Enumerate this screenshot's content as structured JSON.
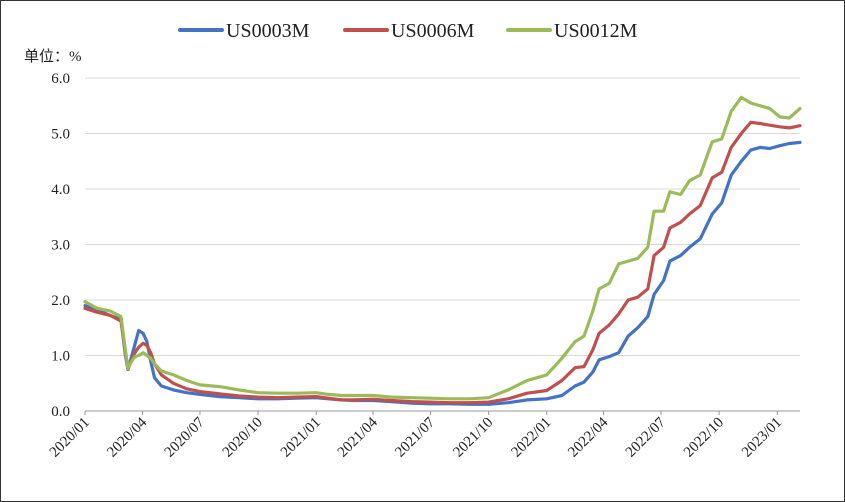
{
  "chart_data": {
    "type": "line",
    "unit_label": "单位：%",
    "ylim": [
      0,
      6
    ],
    "yticks": [
      "0.0",
      "1.0",
      "2.0",
      "3.0",
      "4.0",
      "5.0",
      "6.0"
    ],
    "xlim": [
      "2020-01-01",
      "2023-02-06"
    ],
    "xticks": [
      {
        "date": "2020-01-01",
        "label": "2020/01"
      },
      {
        "date": "2020-04-01",
        "label": "2020/04"
      },
      {
        "date": "2020-07-01",
        "label": "2020/07"
      },
      {
        "date": "2020-10-01",
        "label": "2020/10"
      },
      {
        "date": "2021-01-01",
        "label": "2021/01"
      },
      {
        "date": "2021-04-01",
        "label": "2021/04"
      },
      {
        "date": "2021-07-01",
        "label": "2021/07"
      },
      {
        "date": "2021-10-01",
        "label": "2021/10"
      },
      {
        "date": "2022-01-01",
        "label": "2022/01"
      },
      {
        "date": "2022-04-01",
        "label": "2022/04"
      },
      {
        "date": "2022-07-01",
        "label": "2022/07"
      },
      {
        "date": "2022-10-01",
        "label": "2022/10"
      },
      {
        "date": "2023-01-01",
        "label": "2023/01"
      }
    ],
    "grid": "horizontal",
    "legend_position": "top-center",
    "series": [
      {
        "name": "US0003M",
        "color": "#4472C4",
        "points": [
          [
            "2020-01-01",
            1.9
          ],
          [
            "2020-01-20",
            1.82
          ],
          [
            "2020-02-10",
            1.72
          ],
          [
            "2020-02-27",
            1.65
          ],
          [
            "2020-03-05",
            1.0
          ],
          [
            "2020-03-09",
            0.75
          ],
          [
            "2020-03-14",
            0.95
          ],
          [
            "2020-03-20",
            1.2
          ],
          [
            "2020-03-26",
            1.45
          ],
          [
            "2020-04-02",
            1.4
          ],
          [
            "2020-04-08",
            1.25
          ],
          [
            "2020-04-14",
            0.9
          ],
          [
            "2020-04-20",
            0.6
          ],
          [
            "2020-05-01",
            0.45
          ],
          [
            "2020-05-20",
            0.38
          ],
          [
            "2020-06-10",
            0.33
          ],
          [
            "2020-07-01",
            0.3
          ],
          [
            "2020-08-01",
            0.26
          ],
          [
            "2020-09-01",
            0.24
          ],
          [
            "2020-10-01",
            0.22
          ],
          [
            "2020-11-01",
            0.22
          ],
          [
            "2020-12-01",
            0.23
          ],
          [
            "2021-01-01",
            0.24
          ],
          [
            "2021-01-20",
            0.22
          ],
          [
            "2021-02-10",
            0.2
          ],
          [
            "2021-03-01",
            0.19
          ],
          [
            "2021-04-01",
            0.19
          ],
          [
            "2021-05-01",
            0.17
          ],
          [
            "2021-06-01",
            0.14
          ],
          [
            "2021-07-01",
            0.13
          ],
          [
            "2021-08-01",
            0.13
          ],
          [
            "2021-09-01",
            0.12
          ],
          [
            "2021-10-01",
            0.12
          ],
          [
            "2021-11-01",
            0.15
          ],
          [
            "2021-12-01",
            0.2
          ],
          [
            "2022-01-01",
            0.22
          ],
          [
            "2022-01-25",
            0.28
          ],
          [
            "2022-02-15",
            0.45
          ],
          [
            "2022-03-01",
            0.52
          ],
          [
            "2022-03-15",
            0.7
          ],
          [
            "2022-03-25",
            0.92
          ],
          [
            "2022-04-10",
            0.98
          ],
          [
            "2022-04-25",
            1.05
          ],
          [
            "2022-05-10",
            1.35
          ],
          [
            "2022-05-25",
            1.5
          ],
          [
            "2022-06-10",
            1.7
          ],
          [
            "2022-06-20",
            2.1
          ],
          [
            "2022-07-05",
            2.35
          ],
          [
            "2022-07-15",
            2.7
          ],
          [
            "2022-08-01",
            2.8
          ],
          [
            "2022-08-15",
            2.95
          ],
          [
            "2022-09-01",
            3.1
          ],
          [
            "2022-09-20",
            3.55
          ],
          [
            "2022-10-05",
            3.75
          ],
          [
            "2022-10-20",
            4.25
          ],
          [
            "2022-11-05",
            4.5
          ],
          [
            "2022-11-20",
            4.7
          ],
          [
            "2022-12-05",
            4.75
          ],
          [
            "2022-12-20",
            4.73
          ],
          [
            "2023-01-05",
            4.78
          ],
          [
            "2023-01-20",
            4.82
          ],
          [
            "2023-02-06",
            4.84
          ]
        ]
      },
      {
        "name": "US0006M",
        "color": "#C0504D",
        "points": [
          [
            "2020-01-01",
            1.85
          ],
          [
            "2020-01-20",
            1.78
          ],
          [
            "2020-02-10",
            1.72
          ],
          [
            "2020-02-27",
            1.62
          ],
          [
            "2020-03-05",
            1.05
          ],
          [
            "2020-03-09",
            0.75
          ],
          [
            "2020-03-14",
            0.9
          ],
          [
            "2020-03-20",
            1.05
          ],
          [
            "2020-03-26",
            1.15
          ],
          [
            "2020-04-02",
            1.22
          ],
          [
            "2020-04-08",
            1.18
          ],
          [
            "2020-04-14",
            1.05
          ],
          [
            "2020-04-20",
            0.85
          ],
          [
            "2020-05-01",
            0.65
          ],
          [
            "2020-05-20",
            0.5
          ],
          [
            "2020-06-10",
            0.4
          ],
          [
            "2020-07-01",
            0.35
          ],
          [
            "2020-08-01",
            0.31
          ],
          [
            "2020-09-01",
            0.27
          ],
          [
            "2020-10-01",
            0.25
          ],
          [
            "2020-11-01",
            0.24
          ],
          [
            "2020-12-01",
            0.25
          ],
          [
            "2021-01-01",
            0.26
          ],
          [
            "2021-01-20",
            0.23
          ],
          [
            "2021-02-10",
            0.2
          ],
          [
            "2021-03-01",
            0.2
          ],
          [
            "2021-04-01",
            0.21
          ],
          [
            "2021-05-01",
            0.19
          ],
          [
            "2021-06-01",
            0.17
          ],
          [
            "2021-07-01",
            0.16
          ],
          [
            "2021-08-01",
            0.15
          ],
          [
            "2021-09-01",
            0.15
          ],
          [
            "2021-10-01",
            0.16
          ],
          [
            "2021-11-01",
            0.22
          ],
          [
            "2021-12-01",
            0.32
          ],
          [
            "2022-01-01",
            0.37
          ],
          [
            "2022-01-25",
            0.55
          ],
          [
            "2022-02-15",
            0.78
          ],
          [
            "2022-03-01",
            0.8
          ],
          [
            "2022-03-15",
            1.1
          ],
          [
            "2022-03-25",
            1.4
          ],
          [
            "2022-04-10",
            1.55
          ],
          [
            "2022-04-25",
            1.75
          ],
          [
            "2022-05-10",
            2.0
          ],
          [
            "2022-05-25",
            2.05
          ],
          [
            "2022-06-10",
            2.2
          ],
          [
            "2022-06-20",
            2.8
          ],
          [
            "2022-07-05",
            2.95
          ],
          [
            "2022-07-15",
            3.3
          ],
          [
            "2022-08-01",
            3.4
          ],
          [
            "2022-08-15",
            3.55
          ],
          [
            "2022-09-01",
            3.7
          ],
          [
            "2022-09-20",
            4.2
          ],
          [
            "2022-10-05",
            4.3
          ],
          [
            "2022-10-20",
            4.75
          ],
          [
            "2022-11-05",
            5.0
          ],
          [
            "2022-11-20",
            5.2
          ],
          [
            "2022-12-05",
            5.18
          ],
          [
            "2022-12-20",
            5.15
          ],
          [
            "2023-01-05",
            5.12
          ],
          [
            "2023-01-20",
            5.1
          ],
          [
            "2023-02-06",
            5.14
          ]
        ]
      },
      {
        "name": "US0012M",
        "color": "#9BBB59",
        "points": [
          [
            "2020-01-01",
            1.97
          ],
          [
            "2020-01-20",
            1.85
          ],
          [
            "2020-02-10",
            1.8
          ],
          [
            "2020-02-27",
            1.7
          ],
          [
            "2020-03-05",
            1.1
          ],
          [
            "2020-03-09",
            0.77
          ],
          [
            "2020-03-14",
            0.88
          ],
          [
            "2020-03-20",
            0.98
          ],
          [
            "2020-03-26",
            1.0
          ],
          [
            "2020-04-02",
            1.05
          ],
          [
            "2020-04-08",
            1.0
          ],
          [
            "2020-04-14",
            0.95
          ],
          [
            "2020-04-20",
            0.85
          ],
          [
            "2020-05-01",
            0.72
          ],
          [
            "2020-05-20",
            0.65
          ],
          [
            "2020-06-10",
            0.55
          ],
          [
            "2020-07-01",
            0.47
          ],
          [
            "2020-08-01",
            0.44
          ],
          [
            "2020-09-01",
            0.38
          ],
          [
            "2020-10-01",
            0.33
          ],
          [
            "2020-11-01",
            0.32
          ],
          [
            "2020-12-01",
            0.32
          ],
          [
            "2021-01-01",
            0.33
          ],
          [
            "2021-01-20",
            0.3
          ],
          [
            "2021-02-10",
            0.28
          ],
          [
            "2021-03-01",
            0.28
          ],
          [
            "2021-04-01",
            0.28
          ],
          [
            "2021-05-01",
            0.25
          ],
          [
            "2021-06-01",
            0.24
          ],
          [
            "2021-07-01",
            0.23
          ],
          [
            "2021-08-01",
            0.22
          ],
          [
            "2021-09-01",
            0.22
          ],
          [
            "2021-10-01",
            0.24
          ],
          [
            "2021-11-01",
            0.38
          ],
          [
            "2021-12-01",
            0.55
          ],
          [
            "2022-01-01",
            0.65
          ],
          [
            "2022-01-25",
            0.95
          ],
          [
            "2022-02-15",
            1.25
          ],
          [
            "2022-03-01",
            1.35
          ],
          [
            "2022-03-15",
            1.8
          ],
          [
            "2022-03-25",
            2.2
          ],
          [
            "2022-04-10",
            2.3
          ],
          [
            "2022-04-25",
            2.65
          ],
          [
            "2022-05-10",
            2.7
          ],
          [
            "2022-05-25",
            2.75
          ],
          [
            "2022-06-10",
            2.95
          ],
          [
            "2022-06-20",
            3.6
          ],
          [
            "2022-07-05",
            3.6
          ],
          [
            "2022-07-15",
            3.95
          ],
          [
            "2022-08-01",
            3.9
          ],
          [
            "2022-08-15",
            4.15
          ],
          [
            "2022-09-01",
            4.25
          ],
          [
            "2022-09-20",
            4.85
          ],
          [
            "2022-10-05",
            4.9
          ],
          [
            "2022-10-20",
            5.4
          ],
          [
            "2022-11-05",
            5.65
          ],
          [
            "2022-11-20",
            5.55
          ],
          [
            "2022-12-05",
            5.5
          ],
          [
            "2022-12-20",
            5.45
          ],
          [
            "2023-01-05",
            5.3
          ],
          [
            "2023-01-20",
            5.28
          ],
          [
            "2023-02-06",
            5.45
          ]
        ]
      }
    ]
  }
}
